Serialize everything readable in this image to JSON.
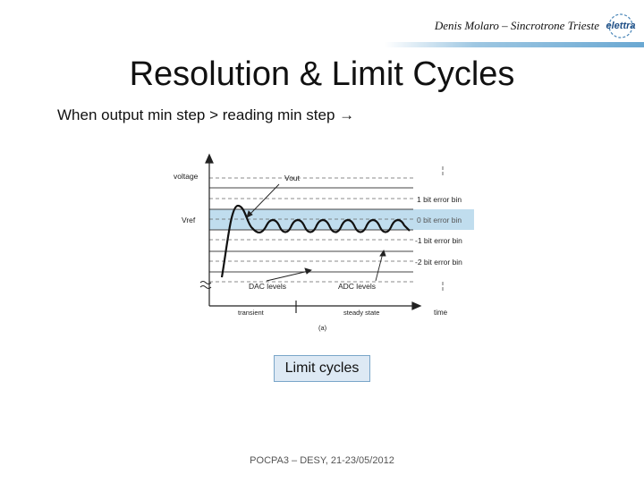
{
  "header": {
    "author": "Denis Molaro – Sincrotrone Trieste",
    "logo_text": "elettra"
  },
  "title": "Resolution & Limit Cycles",
  "subtitle": "When output min step > reading min step →",
  "figure": {
    "y_axis_label": "voltage",
    "x_axis_label": "time",
    "vref_label": "Vref",
    "vout_label": "Vout",
    "bins": [
      "1 bit error bin",
      "0 bit error bin",
      "-1 bit error bin",
      "-2 bit error bin"
    ],
    "dac_label": "DAC levels",
    "adc_label": "ADC levels",
    "transient_label": "transient",
    "steady_label": "steady state",
    "panel_label": "(a)",
    "highlight_color": "#b9d9ec"
  },
  "caption": "Limit cycles",
  "footer": "POCPA3 – DESY, 21-23/05/2012"
}
